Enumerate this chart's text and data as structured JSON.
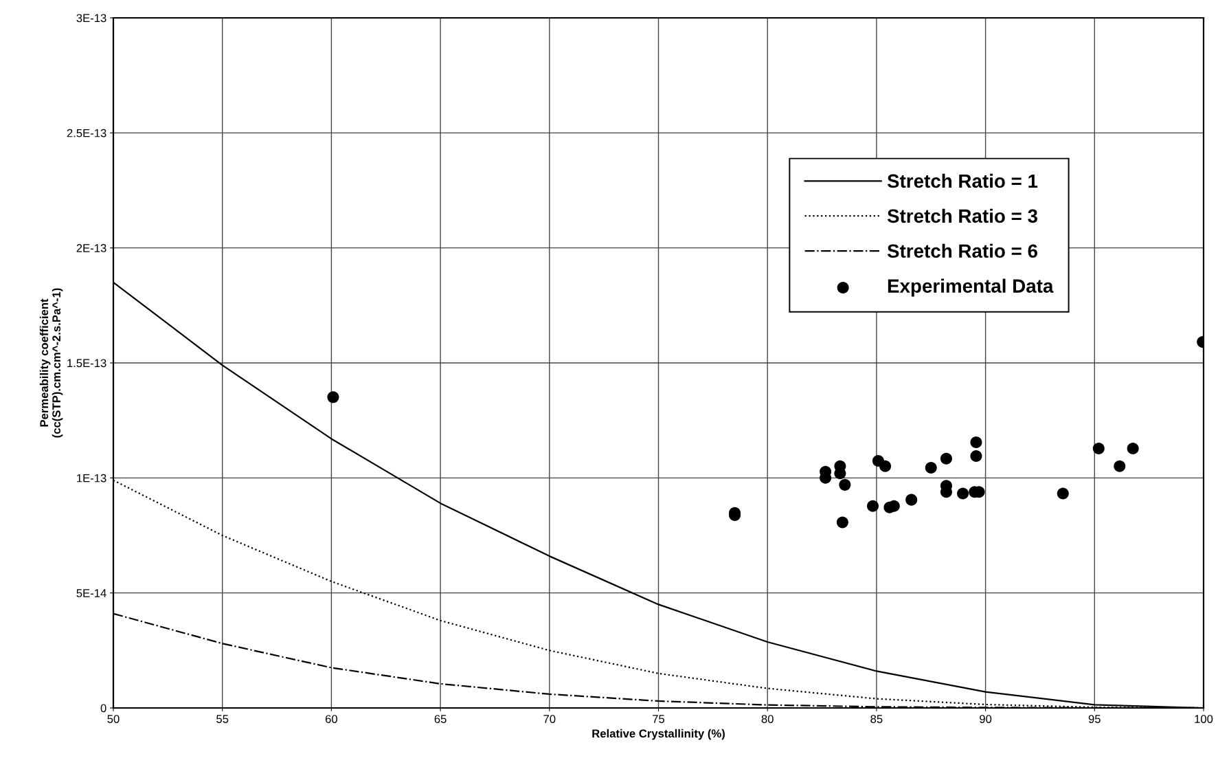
{
  "chart_data": {
    "type": "line",
    "xlabel": "Relative Crystallinity (%)",
    "ylabel": "Permeability coefficient\n(cc(STP).cm.cm^-2.s.Pa^-1)",
    "xlim": [
      50,
      100
    ],
    "xticks": [
      50,
      55,
      60,
      65,
      70,
      75,
      80,
      85,
      90,
      95,
      100
    ],
    "ylim": [
      0,
      3e-13
    ],
    "yticks": [
      {
        "value": 0,
        "label": "0"
      },
      {
        "value": 5e-14,
        "label": "5E-14"
      },
      {
        "value": 1e-13,
        "label": "1E-13"
      },
      {
        "value": 1.5e-13,
        "label": "1.5E-13"
      },
      {
        "value": 2e-13,
        "label": "2E-13"
      },
      {
        "value": 2.5e-13,
        "label": "2.5E-13"
      },
      {
        "value": 3e-13,
        "label": "3E-13"
      }
    ],
    "grid": true,
    "legend": "top right",
    "series": [
      {
        "name": "Stretch Ratio = 1",
        "color": "#000000",
        "line_style": "solid",
        "marker": "none",
        "x": [
          50,
          55,
          60,
          65,
          70,
          75,
          80,
          85,
          90,
          95,
          100
        ],
        "values": [
          1.85e-13,
          1.49e-13,
          1.17e-13,
          8.9e-14,
          6.6e-14,
          4.5e-14,
          2.87e-14,
          1.6e-14,
          7e-15,
          1.4e-15,
          0
        ]
      },
      {
        "name": "Stretch Ratio = 3",
        "color": "#000000",
        "line_style": "dotted",
        "marker": "none",
        "x": [
          50,
          55,
          60,
          65,
          70,
          75,
          80,
          85,
          90,
          95,
          100
        ],
        "values": [
          9.9e-14,
          7.5e-14,
          5.5e-14,
          3.8e-14,
          2.5e-14,
          1.5e-14,
          8.5e-15,
          4e-15,
          1.5e-15,
          3e-16,
          0
        ]
      },
      {
        "name": "Stretch Ratio = 6",
        "color": "#000000",
        "line_style": "dashdot",
        "marker": "none",
        "x": [
          50,
          55,
          60,
          65,
          70,
          75,
          80,
          85,
          90,
          95,
          100
        ],
        "values": [
          4.1e-14,
          2.8e-14,
          1.75e-14,
          1.05e-14,
          6e-15,
          3e-15,
          1.3e-15,
          5e-16,
          2e-16,
          5e-17,
          0
        ]
      },
      {
        "name": "Experimental Data",
        "type": "scatter",
        "color": "#000000",
        "marker": "circle",
        "x": [
          60.08,
          78.5,
          78.5,
          82.66,
          82.66,
          83.33,
          83.33,
          83.55,
          83.44,
          84.83,
          85.08,
          85.4,
          85.6,
          85.8,
          86.6,
          87.5,
          88.2,
          88.2,
          88.2,
          88.96,
          89.57,
          89.57,
          89.5,
          89.7,
          93.55,
          95.19,
          96.15,
          96.76,
          99.96
        ],
        "values": [
          1.351e-13,
          8.48e-14,
          8.38e-14,
          1.027e-13,
          1e-13,
          1.051e-13,
          1.02e-13,
          9.7e-14,
          8.07e-14,
          8.78e-14,
          1.074e-13,
          1.051e-13,
          8.72e-14,
          8.78e-14,
          9.05e-14,
          1.044e-13,
          1.084e-13,
          9.66e-14,
          9.39e-14,
          9.32e-14,
          1.155e-13,
          1.095e-13,
          9.39e-14,
          9.39e-14,
          9.32e-14,
          1.128e-13,
          1.051e-13,
          1.128e-13,
          1.591e-13
        ]
      }
    ]
  }
}
